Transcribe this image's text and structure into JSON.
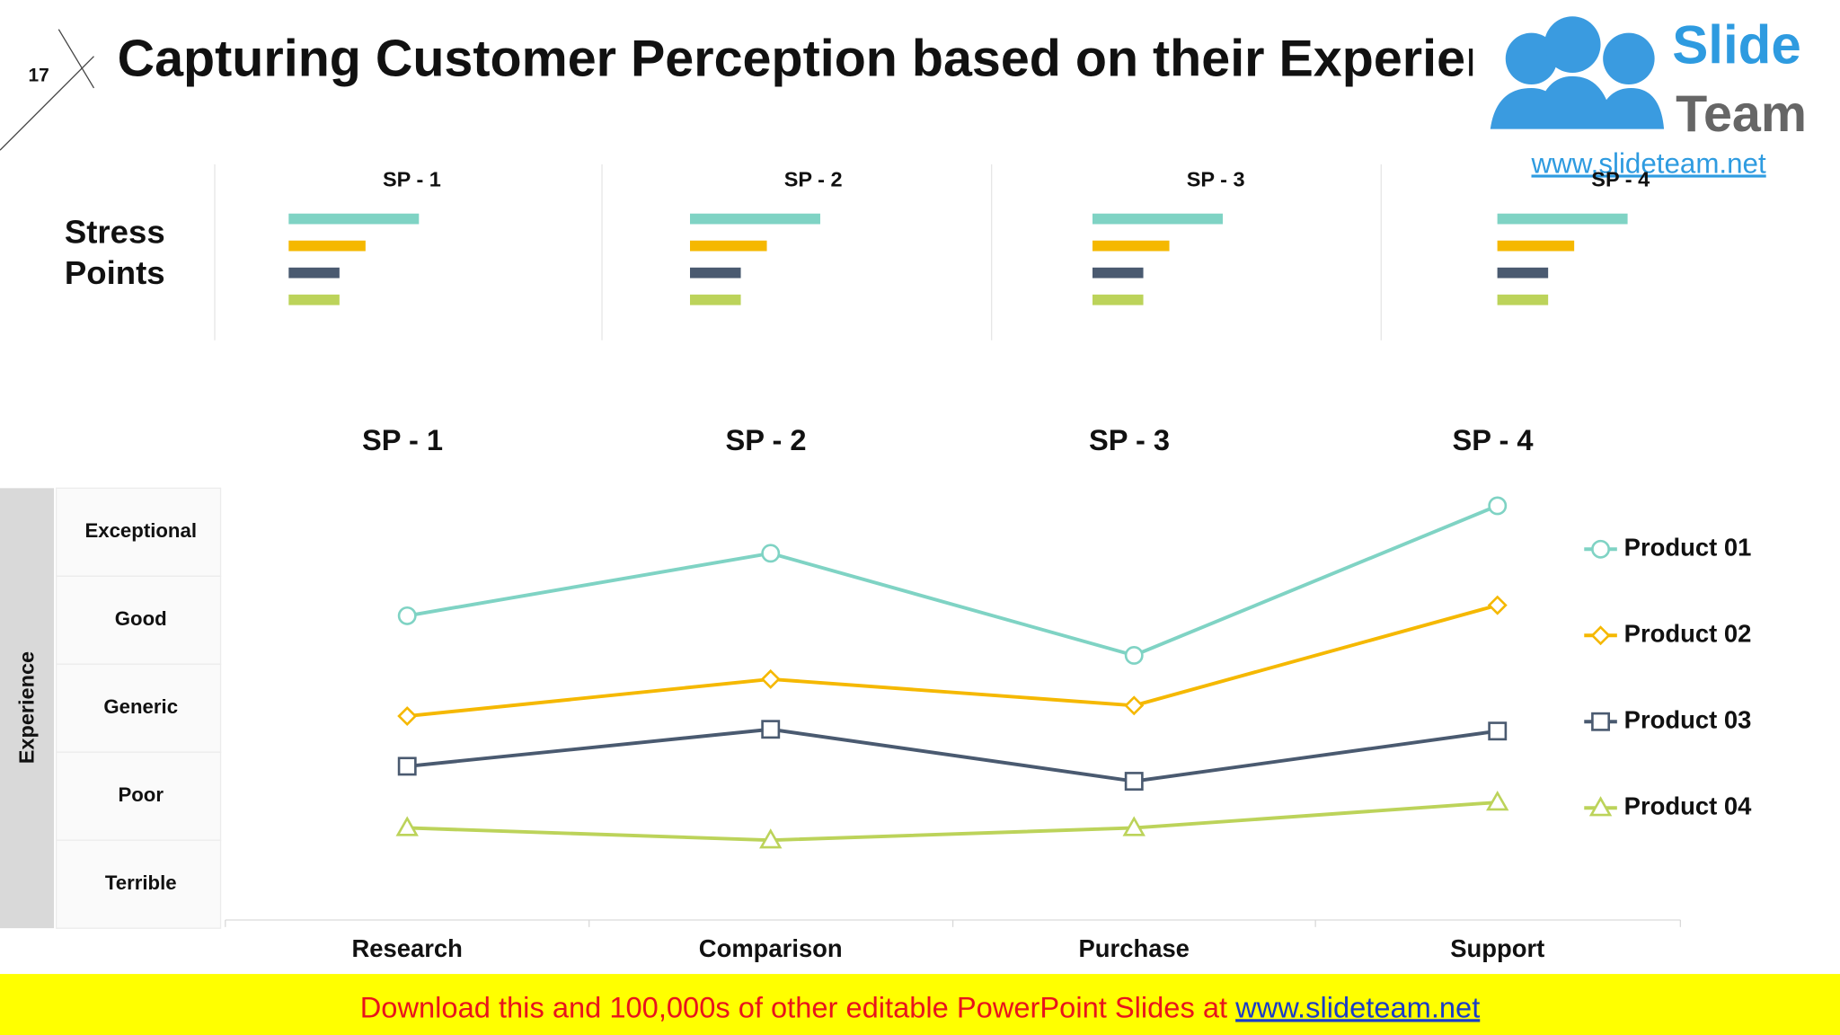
{
  "slide_number": "17",
  "title": "Capturing Customer Perception based on their Experience",
  "logo": {
    "word1": "Slide",
    "word2": "Team",
    "url": "www.slideteam.net"
  },
  "stress_points_label": "Stress Points",
  "footer": {
    "text": "Download this and 100,000s of other editable PowerPoint Slides at ",
    "link": "www.slideteam.net"
  },
  "chart_data": [
    {
      "type": "hbar",
      "title": "SP - 1",
      "values": [
        100,
        59,
        39,
        39
      ],
      "colors": [
        "#7fd3c4",
        "#f5b800",
        "#4a5a70",
        "#bcd35a"
      ],
      "xlim": [
        0,
        100
      ]
    },
    {
      "type": "hbar",
      "title": "SP - 2",
      "values": [
        100,
        59,
        39,
        39
      ],
      "colors": [
        "#7fd3c4",
        "#f5b800",
        "#4a5a70",
        "#bcd35a"
      ],
      "xlim": [
        0,
        100
      ]
    },
    {
      "type": "hbar",
      "title": "SP - 3",
      "values": [
        100,
        59,
        39,
        39
      ],
      "colors": [
        "#7fd3c4",
        "#f5b800",
        "#4a5a70",
        "#bcd35a"
      ],
      "xlim": [
        0,
        100
      ]
    },
    {
      "type": "hbar",
      "title": "SP - 4",
      "values": [
        100,
        59,
        39,
        39
      ],
      "colors": [
        "#7fd3c4",
        "#f5b800",
        "#4a5a70",
        "#bcd35a"
      ],
      "xlim": [
        0,
        100
      ]
    },
    {
      "type": "line",
      "categories": [
        "Research",
        "Comparison",
        "Purchase",
        "Support"
      ],
      "top_labels": [
        "SP - 1",
        "SP - 2",
        "SP - 3",
        "SP - 4"
      ],
      "ylabel": "Experience",
      "ylim": [
        0.5,
        5.5
      ],
      "yticks": [
        {
          "value": 5,
          "label": "Exceptional"
        },
        {
          "value": 4,
          "label": "Good"
        },
        {
          "value": 3,
          "label": "Generic"
        },
        {
          "value": 2,
          "label": "Poor"
        },
        {
          "value": 1,
          "label": "Terrible"
        }
      ],
      "legend": "right",
      "series": [
        {
          "name": "Product 01",
          "color": "#7fd3c4",
          "marker": "circle",
          "values": [
            4.05,
            4.76,
            3.6,
            5.3
          ]
        },
        {
          "name": "Product 02",
          "color": "#f5b800",
          "marker": "diamond",
          "values": [
            2.91,
            3.33,
            3.03,
            4.17
          ]
        },
        {
          "name": "Product 03",
          "color": "#4a5a70",
          "marker": "square",
          "values": [
            2.34,
            2.76,
            2.17,
            2.74
          ]
        },
        {
          "name": "Product 04",
          "color": "#bcd35a",
          "marker": "triangle",
          "values": [
            1.64,
            1.5,
            1.64,
            1.93
          ]
        }
      ]
    }
  ]
}
